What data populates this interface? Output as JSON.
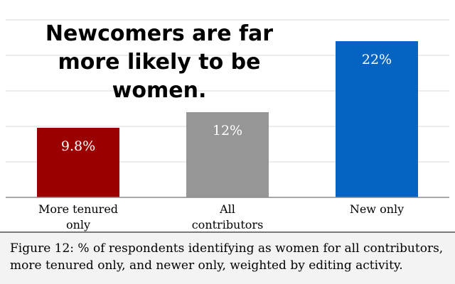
{
  "chart_data": {
    "type": "bar",
    "title": "Newcomers are far more likely to be women.",
    "categories": [
      "More tenured only",
      "All contributors",
      "New only"
    ],
    "values": [
      9.8,
      12,
      22
    ],
    "data_labels": [
      "9.8%",
      "12%",
      "22%"
    ],
    "colors": [
      "#9b0000",
      "#969696",
      "#0563c1"
    ],
    "ylim": [
      0,
      25
    ],
    "grid": true,
    "xlabel": "",
    "ylabel": ""
  },
  "caption": "Figure 12: % of respondents identifying as women for all contributors, more tenured only, and newer only, weighted by editing activity."
}
